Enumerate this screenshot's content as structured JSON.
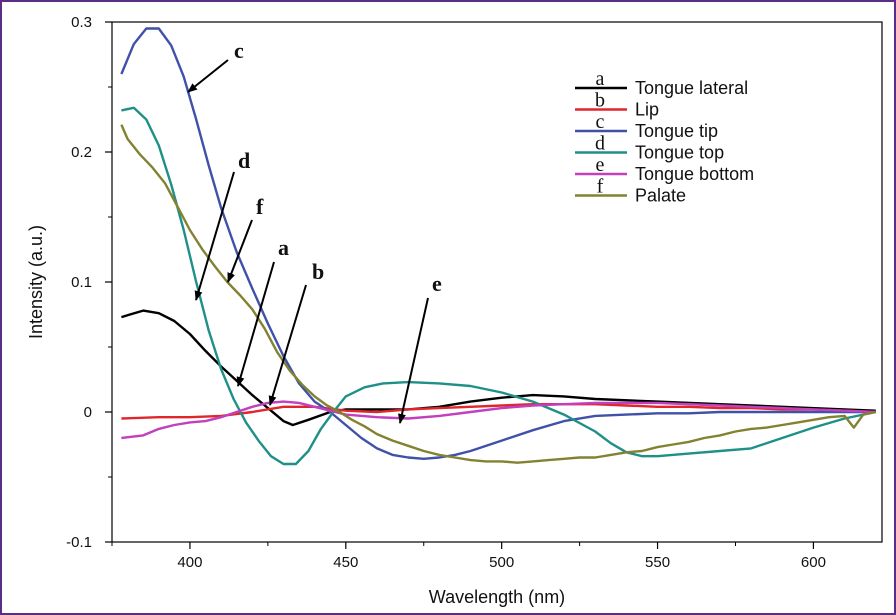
{
  "chart_data": {
    "type": "line",
    "xlabel": "Wavelength (nm)",
    "ylabel": "Intensity (a.u.)",
    "xlim": [
      375,
      622
    ],
    "ylim": [
      -0.1,
      0.3
    ],
    "xticks": [
      400,
      450,
      500,
      550,
      600
    ],
    "xtick_labels": [
      "400",
      "450",
      "500",
      "550",
      "600"
    ],
    "yticks": [
      -0.1,
      0,
      0.1,
      0.2,
      0.3
    ],
    "ytick_labels": [
      "-0.1",
      "0",
      "0.1",
      "0.2",
      "0.3"
    ],
    "legend_position": "top-right",
    "series": [
      {
        "name": "Tongue lateral",
        "letter": "a",
        "color": "#000000",
        "x": [
          378,
          385,
          390,
          395,
          400,
          405,
          410,
          415,
          420,
          425,
          430,
          433,
          438,
          445,
          450,
          460,
          470,
          480,
          490,
          500,
          510,
          520,
          530,
          550,
          570,
          590,
          610,
          620
        ],
        "y": [
          0.073,
          0.078,
          0.076,
          0.07,
          0.06,
          0.047,
          0.035,
          0.024,
          0.013,
          0.003,
          -0.007,
          -0.01,
          -0.006,
          0.0,
          0.002,
          0.002,
          0.002,
          0.004,
          0.008,
          0.011,
          0.013,
          0.012,
          0.01,
          0.008,
          0.006,
          0.004,
          0.002,
          0.001
        ]
      },
      {
        "name": "Lip",
        "letter": "b",
        "color": "#e0262b",
        "x": [
          378,
          390,
          400,
          410,
          420,
          430,
          440,
          450,
          460,
          470,
          480,
          490,
          500,
          510,
          520,
          530,
          540,
          550,
          560,
          570,
          580,
          590,
          600,
          610,
          620
        ],
        "y": [
          -0.005,
          -0.004,
          -0.004,
          -0.003,
          0.0,
          0.004,
          0.004,
          0.001,
          0.0,
          0.002,
          0.003,
          0.004,
          0.005,
          0.006,
          0.006,
          0.006,
          0.005,
          0.004,
          0.004,
          0.003,
          0.003,
          0.002,
          0.002,
          0.001,
          0.0
        ]
      },
      {
        "name": "Tongue tip",
        "letter": "c",
        "color": "#3f51a8",
        "x": [
          378,
          382,
          386,
          390,
          394,
          398,
          402,
          406,
          410,
          415,
          420,
          425,
          430,
          435,
          440,
          445,
          450,
          455,
          460,
          465,
          470,
          475,
          480,
          485,
          490,
          500,
          510,
          520,
          530,
          540,
          550,
          560,
          570,
          580,
          590,
          600,
          610,
          620
        ],
        "y": [
          0.26,
          0.283,
          0.295,
          0.295,
          0.282,
          0.258,
          0.225,
          0.19,
          0.157,
          0.123,
          0.095,
          0.068,
          0.043,
          0.022,
          0.008,
          0.0,
          -0.01,
          -0.02,
          -0.028,
          -0.033,
          -0.035,
          -0.036,
          -0.035,
          -0.033,
          -0.03,
          -0.022,
          -0.014,
          -0.007,
          -0.003,
          -0.002,
          -0.001,
          -0.001,
          0.0,
          0.0,
          0.0,
          0.0,
          0.0,
          0.0
        ]
      },
      {
        "name": "Tongue top",
        "letter": "d",
        "color": "#1f9088",
        "x": [
          378,
          382,
          386,
          390,
          394,
          398,
          402,
          406,
          410,
          414,
          418,
          422,
          426,
          430,
          434,
          438,
          442,
          446,
          450,
          456,
          462,
          470,
          480,
          490,
          500,
          510,
          520,
          530,
          535,
          540,
          545,
          550,
          560,
          570,
          580,
          590,
          600,
          610,
          620
        ],
        "y": [
          0.232,
          0.234,
          0.225,
          0.205,
          0.175,
          0.14,
          0.1,
          0.063,
          0.033,
          0.01,
          -0.008,
          -0.022,
          -0.034,
          -0.04,
          -0.04,
          -0.03,
          -0.013,
          0.0,
          0.012,
          0.019,
          0.022,
          0.023,
          0.022,
          0.02,
          0.015,
          0.008,
          -0.002,
          -0.015,
          -0.024,
          -0.031,
          -0.034,
          -0.034,
          -0.032,
          -0.03,
          -0.028,
          -0.02,
          -0.012,
          -0.005,
          0.0
        ]
      },
      {
        "name": "Tongue bottom",
        "letter": "e",
        "color": "#c23fbd",
        "x": [
          378,
          385,
          390,
          395,
          400,
          405,
          410,
          415,
          420,
          425,
          430,
          435,
          440,
          445,
          450,
          460,
          470,
          480,
          490,
          500,
          510,
          520,
          530,
          540,
          550,
          560,
          570,
          580,
          590,
          600,
          610,
          620
        ],
        "y": [
          -0.02,
          -0.018,
          -0.013,
          -0.01,
          -0.008,
          -0.007,
          -0.004,
          0.0,
          0.004,
          0.007,
          0.008,
          0.007,
          0.004,
          0.001,
          -0.002,
          -0.004,
          -0.005,
          -0.003,
          0.0,
          0.003,
          0.005,
          0.006,
          0.007,
          0.007,
          0.007,
          0.006,
          0.005,
          0.004,
          0.003,
          0.002,
          0.001,
          0.0
        ]
      },
      {
        "name": "Palate",
        "letter": "f",
        "color": "#828231",
        "x": [
          378,
          380,
          384,
          388,
          392,
          396,
          400,
          404,
          408,
          412,
          416,
          420,
          424,
          428,
          432,
          436,
          440,
          444,
          448,
          452,
          456,
          460,
          465,
          470,
          475,
          480,
          485,
          490,
          495,
          500,
          505,
          510,
          515,
          520,
          525,
          530,
          535,
          540,
          545,
          550,
          555,
          560,
          565,
          570,
          575,
          580,
          585,
          590,
          595,
          600,
          605,
          610,
          613,
          616,
          620
        ],
        "y": [
          0.221,
          0.21,
          0.198,
          0.188,
          0.176,
          0.158,
          0.14,
          0.125,
          0.112,
          0.1,
          0.09,
          0.079,
          0.064,
          0.046,
          0.032,
          0.021,
          0.012,
          0.005,
          0.0,
          -0.006,
          -0.011,
          -0.017,
          -0.022,
          -0.026,
          -0.03,
          -0.033,
          -0.035,
          -0.037,
          -0.038,
          -0.038,
          -0.039,
          -0.038,
          -0.037,
          -0.036,
          -0.035,
          -0.035,
          -0.033,
          -0.031,
          -0.03,
          -0.027,
          -0.025,
          -0.023,
          -0.02,
          -0.018,
          -0.015,
          -0.013,
          -0.012,
          -0.01,
          -0.008,
          -0.006,
          -0.004,
          -0.003,
          -0.012,
          -0.002,
          0.0
        ]
      }
    ],
    "annotations": [
      {
        "label": "c",
        "points_to_series": "Tongue tip"
      },
      {
        "label": "d",
        "points_to_series": "Tongue top"
      },
      {
        "label": "f",
        "points_to_series": "Palate"
      },
      {
        "label": "a",
        "points_to_series": "Tongue lateral"
      },
      {
        "label": "b",
        "points_to_series": "Lip"
      },
      {
        "label": "e",
        "points_to_series": "Tongue bottom"
      }
    ]
  }
}
